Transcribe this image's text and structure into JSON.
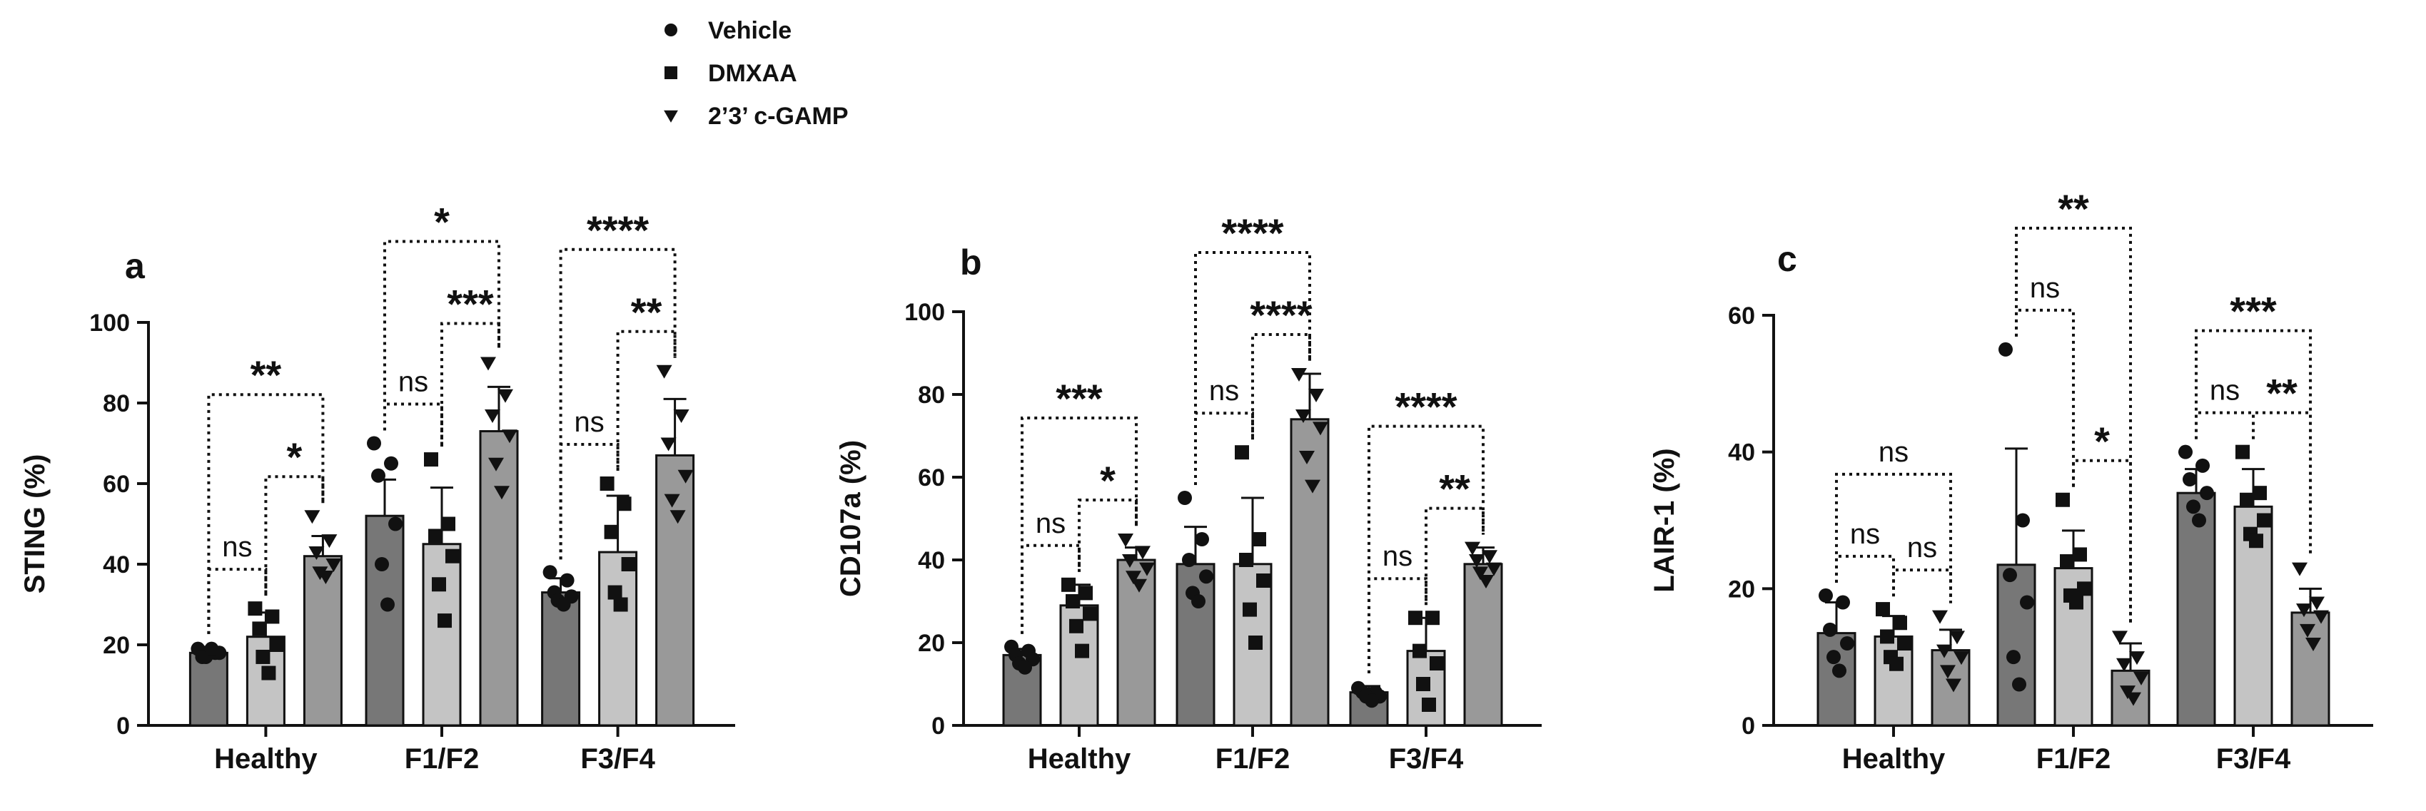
{
  "legend": [
    {
      "label": "Vehicle",
      "marker": "circle",
      "color": "#777777"
    },
    {
      "label": "DMXAA",
      "marker": "square",
      "color": "#c4c4c4"
    },
    {
      "label": "2’3’ c-GAMP",
      "marker": "triangle-down",
      "color": "#999999"
    }
  ],
  "colors": {
    "Vehicle": "#777777",
    "DMXAA": "#c4c4c4",
    "2’3’ c-GAMP": "#999999",
    "points": "#111111"
  },
  "chart_data": [
    {
      "type": "bar",
      "panel": "a",
      "ylabel": "STING (%)",
      "ylim": [
        0,
        100
      ],
      "yticks": [
        0,
        20,
        40,
        60,
        80,
        100
      ],
      "categories": [
        "Healthy",
        "F1/F2",
        "F3/F4"
      ],
      "series": [
        {
          "name": "Vehicle",
          "values": [
            18,
            52,
            33
          ],
          "sd": [
            1.5,
            9,
            3.5
          ],
          "points": [
            [
              19,
              18,
              17,
              18,
              17,
              19
            ],
            [
              70,
              65,
              62,
              50,
              40,
              30
            ],
            [
              38,
              36,
              33,
              32,
              31,
              30
            ]
          ]
        },
        {
          "name": "DMXAA",
          "values": [
            22,
            45,
            43
          ],
          "sd": [
            6,
            14,
            14
          ],
          "points": [
            [
              29,
              27,
              24,
              20,
              17,
              13
            ],
            [
              66,
              50,
              47,
              42,
              35,
              26
            ],
            [
              60,
              55,
              48,
              40,
              33,
              30
            ]
          ]
        },
        {
          "name": "2’3’ c-GAMP",
          "values": [
            42,
            73,
            67
          ],
          "sd": [
            5,
            11,
            14
          ],
          "points": [
            [
              52,
              46,
              43,
              40,
              38,
              37
            ],
            [
              90,
              82,
              77,
              72,
              65,
              58
            ],
            [
              88,
              77,
              70,
              62,
              56,
              52
            ]
          ]
        }
      ],
      "comparisons": [
        {
          "cat": 0,
          "from": 0,
          "to": 1,
          "label": "ns"
        },
        {
          "cat": 0,
          "from": 1,
          "to": 2,
          "label": "*"
        },
        {
          "cat": 0,
          "from": 0,
          "to": 2,
          "label": "**"
        },
        {
          "cat": 1,
          "from": 0,
          "to": 1,
          "label": "ns"
        },
        {
          "cat": 1,
          "from": 1,
          "to": 2,
          "label": "***"
        },
        {
          "cat": 1,
          "from": 0,
          "to": 2,
          "label": "*"
        },
        {
          "cat": 2,
          "from": 0,
          "to": 1,
          "label": "ns"
        },
        {
          "cat": 2,
          "from": 1,
          "to": 2,
          "label": "**"
        },
        {
          "cat": 2,
          "from": 0,
          "to": 2,
          "label": "****"
        }
      ]
    },
    {
      "type": "bar",
      "panel": "b",
      "ylabel": "CD107a (%)",
      "ylim": [
        0,
        100
      ],
      "yticks": [
        0,
        20,
        40,
        60,
        80,
        100
      ],
      "categories": [
        "Healthy",
        "F1/F2",
        "F3/F4"
      ],
      "series": [
        {
          "name": "Vehicle",
          "values": [
            17,
            39,
            8
          ],
          "sd": [
            1.5,
            9,
            1.5
          ],
          "points": [
            [
              19,
              18,
              17,
              16,
              15,
              14
            ],
            [
              55,
              45,
              40,
              36,
              32,
              30
            ],
            [
              9,
              8,
              8,
              7,
              7,
              6
            ]
          ]
        },
        {
          "name": "DMXAA",
          "values": [
            29,
            39,
            18
          ],
          "sd": [
            5,
            16,
            8
          ],
          "points": [
            [
              34,
              32,
              30,
              27,
              24,
              18
            ],
            [
              66,
              45,
              40,
              35,
              28,
              20
            ],
            [
              26,
              26,
              18,
              15,
              10,
              5
            ]
          ]
        },
        {
          "name": "2’3’ c-GAMP",
          "values": [
            40,
            74,
            39
          ],
          "sd": [
            3,
            11,
            4
          ],
          "points": [
            [
              45,
              42,
              40,
              38,
              36,
              34
            ],
            [
              85,
              80,
              75,
              72,
              65,
              58
            ],
            [
              43,
              41,
              40,
              38,
              37,
              35
            ]
          ]
        }
      ],
      "comparisons": [
        {
          "cat": 0,
          "from": 0,
          "to": 1,
          "label": "ns"
        },
        {
          "cat": 0,
          "from": 1,
          "to": 2,
          "label": "*"
        },
        {
          "cat": 0,
          "from": 0,
          "to": 2,
          "label": "***"
        },
        {
          "cat": 1,
          "from": 0,
          "to": 1,
          "label": "ns"
        },
        {
          "cat": 1,
          "from": 1,
          "to": 2,
          "label": "****"
        },
        {
          "cat": 1,
          "from": 0,
          "to": 2,
          "label": "****"
        },
        {
          "cat": 2,
          "from": 0,
          "to": 1,
          "label": "ns"
        },
        {
          "cat": 2,
          "from": 1,
          "to": 2,
          "label": "**"
        },
        {
          "cat": 2,
          "from": 0,
          "to": 2,
          "label": "****"
        }
      ]
    },
    {
      "type": "bar",
      "panel": "c",
      "ylabel": "LAIR-1 (%)",
      "ylim": [
        0,
        60
      ],
      "yticks": [
        0,
        20,
        40,
        60
      ],
      "categories": [
        "Healthy",
        "F1/F2",
        "F3/F4"
      ],
      "series": [
        {
          "name": "Vehicle",
          "values": [
            13.5,
            23.5,
            34
          ],
          "sd": [
            4.5,
            17,
            3.5
          ],
          "points": [
            [
              19,
              18,
              14,
              12,
              10,
              8
            ],
            [
              55,
              30,
              22,
              18,
              10,
              6
            ],
            [
              40,
              38,
              36,
              34,
              32,
              30
            ]
          ]
        },
        {
          "name": "DMXAA",
          "values": [
            13,
            23,
            32
          ],
          "sd": [
            3,
            5.5,
            5.5
          ],
          "points": [
            [
              17,
              15,
              13,
              12,
              10,
              9
            ],
            [
              33,
              25,
              24,
              20,
              19,
              18
            ],
            [
              40,
              34,
              33,
              30,
              28,
              27
            ]
          ]
        },
        {
          "name": "2’3’ c-GAMP",
          "values": [
            11,
            8,
            16.5
          ],
          "sd": [
            3,
            4,
            3.5
          ],
          "points": [
            [
              16,
              13,
              11,
              10,
              8,
              6
            ],
            [
              13,
              10,
              9,
              7,
              5,
              4
            ],
            [
              23,
              18,
              17,
              16,
              14,
              12
            ]
          ]
        }
      ],
      "comparisons": [
        {
          "cat": 0,
          "from": 0,
          "to": 1,
          "label": "ns"
        },
        {
          "cat": 0,
          "from": 1,
          "to": 2,
          "label": "ns"
        },
        {
          "cat": 0,
          "from": 0,
          "to": 2,
          "label": "ns"
        },
        {
          "cat": 1,
          "from": 0,
          "to": 1,
          "label": "ns"
        },
        {
          "cat": 1,
          "from": 1,
          "to": 2,
          "label": "*"
        },
        {
          "cat": 1,
          "from": 0,
          "to": 2,
          "label": "**"
        },
        {
          "cat": 2,
          "from": 0,
          "to": 1,
          "label": "ns"
        },
        {
          "cat": 2,
          "from": 1,
          "to": 2,
          "label": "**"
        },
        {
          "cat": 2,
          "from": 0,
          "to": 2,
          "label": "***"
        }
      ]
    }
  ]
}
